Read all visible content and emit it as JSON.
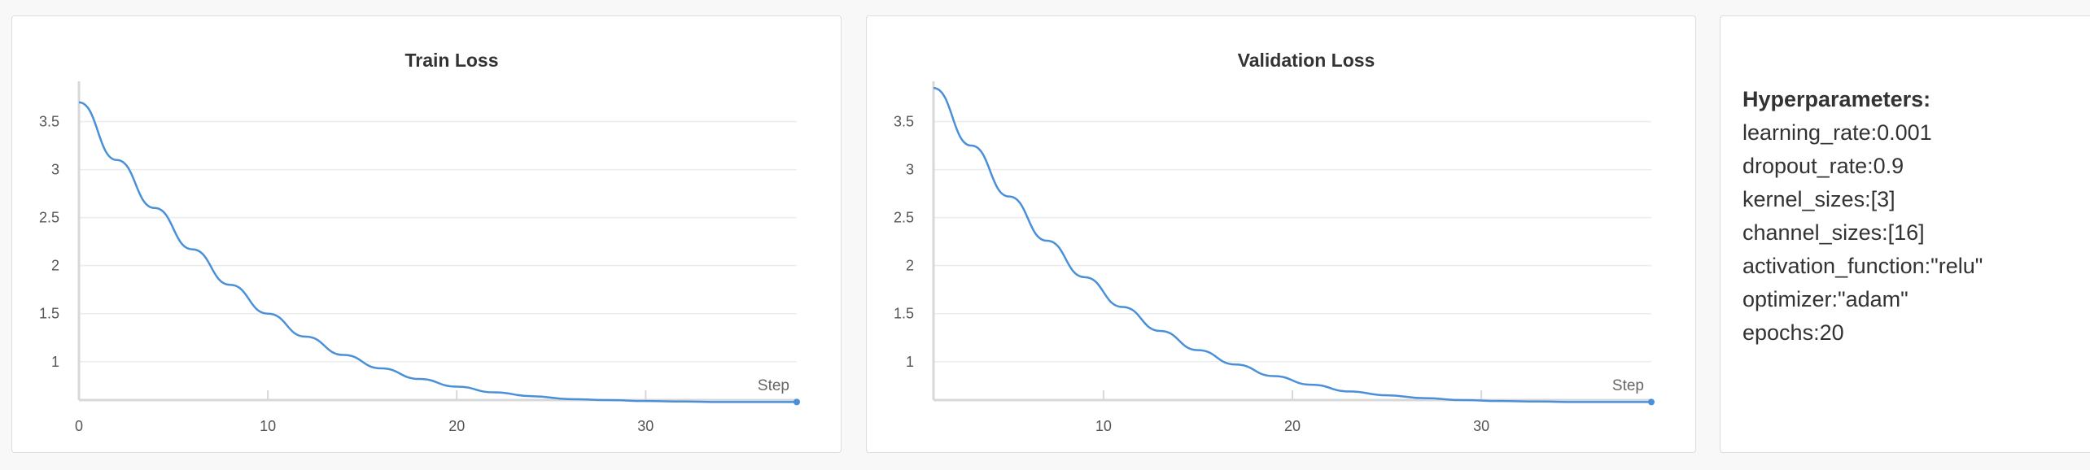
{
  "chart_data": [
    {
      "type": "line",
      "title": "Train Loss",
      "xlabel": "Step",
      "ylabel": "",
      "xlim": [
        0,
        38
      ],
      "ylim": [
        0.6,
        3.75
      ],
      "x_ticks": [
        "0",
        "10",
        "20",
        "30"
      ],
      "y_ticks": [
        "1",
        "1.5",
        "2",
        "2.5",
        "3",
        "3.5"
      ],
      "grid": true,
      "series": [
        {
          "color": "#4a90d9",
          "x": [
            0,
            2,
            4,
            6,
            8,
            10,
            12,
            14,
            16,
            18,
            20,
            22,
            24,
            26,
            28,
            30,
            32,
            34,
            36,
            38
          ],
          "y": [
            3.7,
            3.1,
            2.6,
            2.17,
            1.8,
            1.5,
            1.26,
            1.07,
            0.93,
            0.82,
            0.74,
            0.68,
            0.64,
            0.61,
            0.6,
            0.59,
            0.585,
            0.58,
            0.58,
            0.58
          ]
        }
      ]
    },
    {
      "type": "line",
      "title": "Validation Loss",
      "xlabel": "Step",
      "ylabel": "",
      "xlim": [
        1,
        39
      ],
      "ylim": [
        0.6,
        3.75
      ],
      "x_ticks": [
        "10",
        "20",
        "30"
      ],
      "y_ticks": [
        "1",
        "1.5",
        "2",
        "2.5",
        "3",
        "3.5"
      ],
      "grid": true,
      "series": [
        {
          "color": "#4a90d9",
          "x": [
            1,
            3,
            5,
            7,
            9,
            11,
            13,
            15,
            17,
            19,
            21,
            23,
            25,
            27,
            29,
            31,
            33,
            35,
            37,
            39
          ],
          "y": [
            3.85,
            3.25,
            2.72,
            2.26,
            1.88,
            1.57,
            1.32,
            1.12,
            0.97,
            0.85,
            0.76,
            0.69,
            0.65,
            0.62,
            0.6,
            0.59,
            0.585,
            0.58,
            0.58,
            0.58
          ]
        }
      ]
    }
  ],
  "hyperparameters": {
    "title": "Hyperparameters:",
    "items": [
      "learning_rate:0.001",
      "dropout_rate:0.9",
      "kernel_sizes:[3]",
      "channel_sizes:[16]",
      "activation_function:\"relu\"",
      "optimizer:\"adam\"",
      "epochs:20"
    ]
  }
}
